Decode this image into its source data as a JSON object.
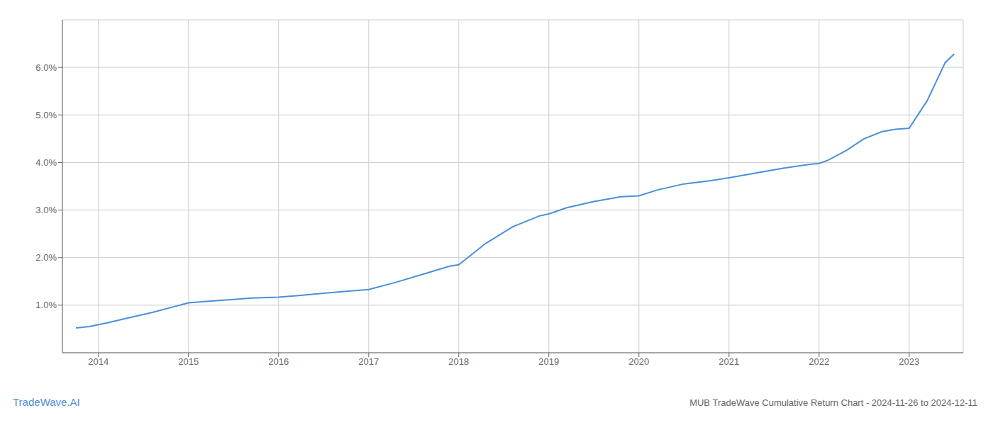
{
  "chart_data": {
    "type": "line",
    "title": "MUB TradeWave Cumulative Return Chart - 2024-11-26 to 2024-12-11",
    "annotations": [
      "TradeWave.AI"
    ],
    "color": "#4a90d9",
    "grid": true,
    "x": [
      2013.75,
      2013.9,
      2014.1,
      2014.3,
      2014.6,
      2014.9,
      2015.0,
      2015.2,
      2015.5,
      2015.7,
      2016.0,
      2016.2,
      2016.5,
      2016.8,
      2017.0,
      2017.3,
      2017.6,
      2017.9,
      2018.0,
      2018.1,
      2018.3,
      2018.6,
      2018.9,
      2019.0,
      2019.2,
      2019.5,
      2019.8,
      2020.0,
      2020.2,
      2020.5,
      2020.8,
      2021.0,
      2021.3,
      2021.6,
      2021.9,
      2022.0,
      2022.1,
      2022.3,
      2022.5,
      2022.7,
      2022.85,
      2023.0,
      2023.2,
      2023.4,
      2023.5
    ],
    "values": [
      0.52,
      0.55,
      0.63,
      0.72,
      0.85,
      1.0,
      1.05,
      1.08,
      1.12,
      1.15,
      1.17,
      1.2,
      1.25,
      1.3,
      1.33,
      1.48,
      1.65,
      1.82,
      1.85,
      2.0,
      2.3,
      2.65,
      2.88,
      2.92,
      3.05,
      3.18,
      3.28,
      3.3,
      3.42,
      3.55,
      3.62,
      3.68,
      3.78,
      3.88,
      3.96,
      3.98,
      4.05,
      4.25,
      4.5,
      4.65,
      4.7,
      4.72,
      5.3,
      6.1,
      6.28
    ],
    "xlim": [
      2013.6,
      2023.6
    ],
    "xticks": [
      2014,
      2015,
      2016,
      2017,
      2018,
      2019,
      2020,
      2021,
      2022,
      2023
    ],
    "ylim": [
      0,
      7.0
    ],
    "yticks": [
      {
        "value": 1.0,
        "label": "1.0%"
      },
      {
        "value": 2.0,
        "label": "2.0%"
      },
      {
        "value": 3.0,
        "label": "3.0%"
      },
      {
        "value": 4.0,
        "label": "4.0%"
      },
      {
        "value": 5.0,
        "label": "5.0%"
      },
      {
        "value": 6.0,
        "label": "6.0%"
      }
    ]
  }
}
